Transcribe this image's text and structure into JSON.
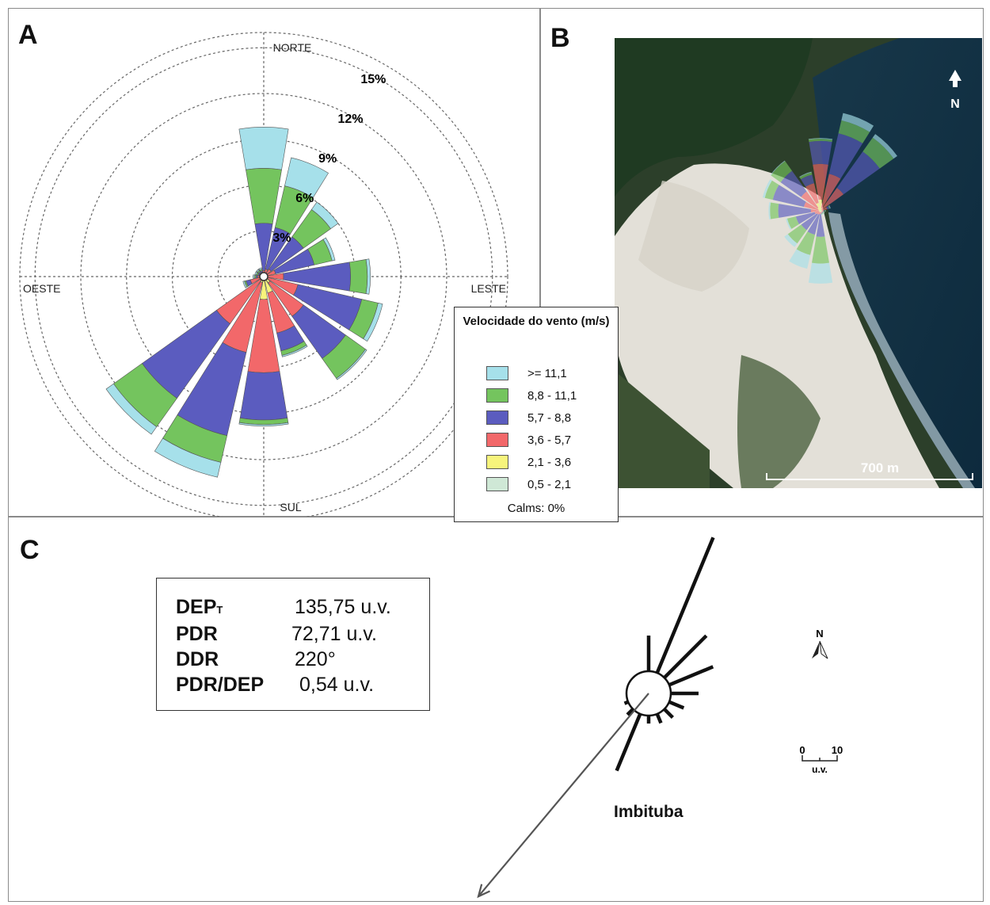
{
  "panels": {
    "a": "A",
    "b": "B",
    "c": "C"
  },
  "chart_data": [
    {
      "type": "polar-bar",
      "directions_deg": [
        0,
        22.5,
        45,
        67.5,
        90,
        112.5,
        135,
        157.5,
        180,
        202.5,
        225,
        247.5,
        270,
        292.5,
        315,
        337.5
      ],
      "cardinal_labels": {
        "north": "NORTE",
        "south": "SUL",
        "east": "LESTE",
        "west": "OESTE"
      },
      "radial_ticks": [
        "3%",
        "6%",
        "9%",
        "12%",
        "15%"
      ],
      "radial_max": 16,
      "series": [
        {
          "name": "0,5 - 2,1",
          "color": "#cfe8d6",
          "values": [
            0.1,
            0.1,
            0.1,
            0.1,
            0.1,
            0.1,
            0.1,
            0.1,
            0.1,
            0.1,
            0.1,
            0.1,
            0.1,
            0.1,
            0.1,
            0.1
          ]
        },
        {
          "name": "2,1 - 3,6",
          "color": "#f7f47c",
          "values": [
            0.1,
            0.1,
            0.1,
            0.1,
            0.1,
            0.2,
            0.4,
            1.0,
            1.4,
            0.3,
            0.1,
            0.1,
            0.1,
            0.1,
            0.1,
            0.1
          ]
        },
        {
          "name": "3,6 - 5,7",
          "color": "#f2686a",
          "values": [
            0.2,
            0.3,
            0.4,
            0.6,
            1.1,
            2.0,
            2.7,
            2.7,
            4.8,
            4.7,
            3.6,
            0.7,
            0.2,
            0.1,
            0.1,
            0.1
          ]
        },
        {
          "name": "5,7 - 8,8",
          "color": "#5b5cbf",
          "values": [
            3.1,
            2.8,
            2.6,
            2.6,
            4.4,
            4.3,
            3.4,
            1.2,
            3.1,
            5.6,
            6.0,
            0.3,
            0.1,
            0.1,
            0.1,
            0.1
          ]
        },
        {
          "name": "8,8 - 11,1",
          "color": "#74c45e",
          "values": [
            3.6,
            2.8,
            2.2,
            1.2,
            1.1,
            1.1,
            1.6,
            0.3,
            0.3,
            1.8,
            2.3,
            0.1,
            0.1,
            0.1,
            0.1,
            0.1
          ]
        },
        {
          "name": ">= 11,1",
          "color": "#a6e0ea",
          "values": [
            2.7,
            1.9,
            0.6,
            0.2,
            0.2,
            0.3,
            0.1,
            0.1,
            0.1,
            1.0,
            0.6,
            0.1,
            0.1,
            0.1,
            0.1,
            0.1
          ]
        }
      ],
      "legend": {
        "title": "Velocidade do vento (m/s)",
        "entries": [
          ">= 11,1",
          "8,8 - 11,1",
          "5,7 - 8,8",
          "3,6 - 5,7",
          "2,1 - 3,6",
          "0,5 - 2,1"
        ],
        "calms": "Calms: 0%"
      }
    },
    {
      "type": "sand-rose",
      "units": "u.v.",
      "stats": [
        {
          "label": "DEP",
          "sub": "T",
          "value": "135,75 u.v."
        },
        {
          "label": "PDR",
          "sub": "",
          "value": "72,71 u.v."
        },
        {
          "label": "DDR",
          "sub": "",
          "value": "220°"
        },
        {
          "label": "PDR/DEP",
          "sub": "",
          "value": "0,54 u.v."
        }
      ],
      "arms": [
        {
          "dir": 0,
          "value": 9
        },
        {
          "dir": 22.5,
          "value": 37
        },
        {
          "dir": 45,
          "value": 15
        },
        {
          "dir": 67.5,
          "value": 12
        },
        {
          "dir": 90,
          "value": 7
        },
        {
          "dir": 112.5,
          "value": 4
        },
        {
          "dir": 135,
          "value": 3
        },
        {
          "dir": 157.5,
          "value": 2.5
        },
        {
          "dir": 180,
          "value": 2
        },
        {
          "dir": 202.5,
          "value": 15.5
        },
        {
          "dir": 225,
          "value": 2
        },
        {
          "dir": 247.5,
          "value": 1
        }
      ],
      "resultant": {
        "direction_deg": 220,
        "magnitude": 72.71
      },
      "station": "Imbituba",
      "north_label": "N",
      "scale_bar": {
        "min": "0",
        "max": "10",
        "unit": "u.v."
      }
    }
  ],
  "map": {
    "north_label": "N",
    "scale_label": "700 m"
  }
}
